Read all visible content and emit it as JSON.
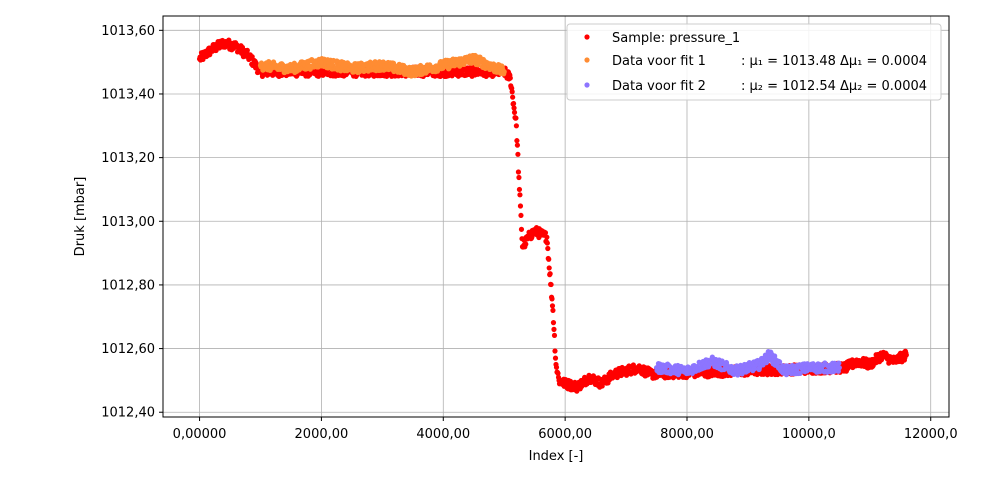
{
  "chart_data": {
    "type": "scatter",
    "xlabel": "Index [-]",
    "ylabel": "Druk [mbar]",
    "xlim": [
      -600,
      12300
    ],
    "ylim": [
      1012.385,
      1013.645
    ],
    "grid": true,
    "legend_position": "top-right",
    "x_ticks": [
      {
        "value": 0,
        "label": "0,00000"
      },
      {
        "value": 2000,
        "label": "2000,00"
      },
      {
        "value": 4000,
        "label": "4000,00"
      },
      {
        "value": 6000,
        "label": "6000,00"
      },
      {
        "value": 8000,
        "label": "8000,00"
      },
      {
        "value": 10000,
        "label": "10000,0"
      },
      {
        "value": 12000,
        "label": "12000,0"
      }
    ],
    "y_ticks": [
      {
        "value": 1012.4,
        "label": "1012,40"
      },
      {
        "value": 1012.6,
        "label": "1012,60"
      },
      {
        "value": 1012.8,
        "label": "1012,80"
      },
      {
        "value": 1013.0,
        "label": "1013,00"
      },
      {
        "value": 1013.2,
        "label": "1013,20"
      },
      {
        "value": 1013.4,
        "label": "1013,40"
      },
      {
        "value": 1013.6,
        "label": "1013,60"
      }
    ],
    "series": [
      {
        "name": "Sample: pressure_1",
        "color": "#ff0000",
        "x": [
          0,
          200,
          400,
          600,
          800,
          1000,
          5000,
          5100,
          5200,
          5250,
          5300,
          5400,
          5500,
          5600,
          5700,
          5800,
          5850,
          5900,
          6000,
          6200,
          6400,
          6600,
          6800,
          7000,
          7200,
          7400,
          10600,
          10800,
          11000,
          11200,
          11400,
          11600
        ],
        "y": [
          1013.51,
          1013.54,
          1013.56,
          1013.55,
          1013.52,
          1013.47,
          1013.47,
          1013.45,
          1013.3,
          1013.1,
          1012.92,
          1012.95,
          1012.97,
          1012.96,
          1012.95,
          1012.72,
          1012.55,
          1012.5,
          1012.49,
          1012.48,
          1012.51,
          1012.49,
          1012.52,
          1012.53,
          1012.54,
          1012.52,
          1012.54,
          1012.56,
          1012.55,
          1012.58,
          1012.56,
          1012.58
        ]
      },
      {
        "name": "Data voor fit 1",
        "mu_label": "μ₁ = 1013.48",
        "delta_label": "Δμ₁ = 0.0004",
        "color": "#ff8c33",
        "x": [
          1000,
          1500,
          2000,
          2500,
          3000,
          3500,
          4000,
          4500,
          5000
        ],
        "y": [
          1013.49,
          1013.48,
          1013.5,
          1013.48,
          1013.49,
          1013.47,
          1013.49,
          1013.51,
          1013.47
        ]
      },
      {
        "name": "Data voor fit 2",
        "mu_label": "μ₂ = 1012.54",
        "delta_label": "Δμ₂ = 0.0004",
        "color": "#8d75ff",
        "x": [
          7500,
          8000,
          8400,
          8800,
          9200,
          9350,
          9600,
          10000,
          10500
        ],
        "y": [
          1012.54,
          1012.53,
          1012.56,
          1012.53,
          1012.55,
          1012.58,
          1012.53,
          1012.54,
          1012.54
        ]
      }
    ]
  }
}
